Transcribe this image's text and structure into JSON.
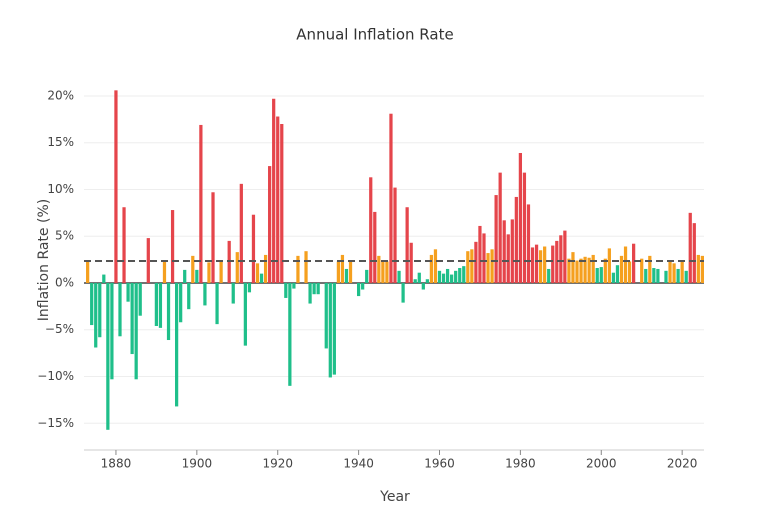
{
  "chart_data": {
    "type": "bar",
    "title": "Annual Inflation Rate",
    "x_label": "Year",
    "y_label": "Inflation Rate (%)",
    "x": [
      1873,
      1874,
      1875,
      1876,
      1877,
      1878,
      1879,
      1880,
      1881,
      1882,
      1883,
      1884,
      1885,
      1886,
      1887,
      1888,
      1889,
      1890,
      1891,
      1892,
      1893,
      1894,
      1895,
      1896,
      1897,
      1898,
      1899,
      1900,
      1901,
      1902,
      1903,
      1904,
      1905,
      1906,
      1907,
      1908,
      1909,
      1910,
      1911,
      1912,
      1913,
      1914,
      1915,
      1916,
      1917,
      1918,
      1919,
      1920,
      1921,
      1922,
      1923,
      1924,
      1925,
      1926,
      1927,
      1928,
      1929,
      1930,
      1931,
      1932,
      1933,
      1934,
      1935,
      1936,
      1937,
      1938,
      1939,
      1940,
      1941,
      1942,
      1943,
      1944,
      1945,
      1946,
      1947,
      1948,
      1949,
      1950,
      1951,
      1952,
      1953,
      1954,
      1955,
      1956,
      1957,
      1958,
      1959,
      1960,
      1961,
      1962,
      1963,
      1964,
      1965,
      1966,
      1967,
      1968,
      1969,
      1970,
      1971,
      1972,
      1973,
      1974,
      1975,
      1976,
      1977,
      1978,
      1979,
      1980,
      1981,
      1982,
      1983,
      1984,
      1985,
      1986,
      1987,
      1988,
      1989,
      1990,
      1991,
      1992,
      1993,
      1994,
      1995,
      1996,
      1997,
      1998,
      1999,
      2000,
      2001,
      2002,
      2003,
      2004,
      2005,
      2006,
      2007,
      2008,
      2009,
      2010,
      2011,
      2012,
      2013,
      2014,
      2015,
      2016,
      2017,
      2018,
      2019,
      2020,
      2021,
      2022,
      2023,
      2024,
      2025
    ],
    "values": [
      2.3,
      -4.5,
      -6.9,
      -5.8,
      0.9,
      -15.7,
      -10.3,
      20.6,
      -5.7,
      8.1,
      -2.0,
      -7.6,
      -10.3,
      -3.5,
      0,
      4.8,
      0,
      -4.6,
      -4.8,
      2.3,
      -6.1,
      7.8,
      -13.2,
      -4.2,
      1.4,
      -2.8,
      2.9,
      1.4,
      16.9,
      -2.4,
      2.2,
      9.7,
      -4.4,
      2.3,
      0,
      4.5,
      -2.2,
      3.3,
      10.6,
      -6.7,
      -1.0,
      7.3,
      2.1,
      1.0,
      3.0,
      12.5,
      19.7,
      17.8,
      17.0,
      -1.6,
      -11.0,
      -0.6,
      2.9,
      0,
      3.4,
      -2.2,
      -1.2,
      -1.2,
      0,
      -7.0,
      -10.1,
      -9.8,
      2.3,
      3.0,
      1.5,
      2.3,
      0,
      -1.4,
      -0.7,
      1.4,
      11.3,
      7.6,
      2.9,
      2.3,
      2.3,
      18.1,
      10.2,
      1.3,
      -2.1,
      8.1,
      4.3,
      0.4,
      1.1,
      -0.7,
      0.4,
      3.0,
      3.6,
      1.3,
      1.0,
      1.5,
      0.9,
      1.3,
      1.6,
      1.8,
      3.4,
      3.6,
      4.4,
      6.1,
      5.3,
      3.2,
      3.6,
      9.4,
      11.8,
      6.7,
      5.2,
      6.8,
      9.2,
      13.9,
      11.8,
      8.4,
      3.8,
      4.1,
      3.5,
      3.9,
      1.5,
      4.0,
      4.5,
      5.1,
      5.6,
      2.6,
      3.3,
      2.4,
      2.6,
      2.8,
      2.7,
      3.0,
      1.6,
      1.7,
      2.6,
      3.7,
      1.1,
      1.9,
      2.9,
      3.9,
      2.3,
      4.2,
      0,
      2.6,
      1.5,
      2.9,
      1.6,
      1.5,
      0,
      1.3,
      2.4,
      2.1,
      1.5,
      2.4,
      1.3,
      7.5,
      6.4,
      3.0,
      2.9
    ],
    "colors": [
      "#f5a01f",
      "#1fbf8a",
      "#1fbf8a",
      "#1fbf8a",
      "#1fbf8a",
      "#1fbf8a",
      "#1fbf8a",
      "#e5454b",
      "#1fbf8a",
      "#e5454b",
      "#1fbf8a",
      "#1fbf8a",
      "#1fbf8a",
      "#1fbf8a",
      "#1fbf8a",
      "#e5454b",
      "#1fbf8a",
      "#1fbf8a",
      "#1fbf8a",
      "#f5a01f",
      "#1fbf8a",
      "#e5454b",
      "#1fbf8a",
      "#1fbf8a",
      "#1fbf8a",
      "#1fbf8a",
      "#f5a01f",
      "#1fbf8a",
      "#e5454b",
      "#1fbf8a",
      "#f5a01f",
      "#e5454b",
      "#1fbf8a",
      "#f5a01f",
      "#1fbf8a",
      "#e5454b",
      "#1fbf8a",
      "#f5a01f",
      "#e5454b",
      "#1fbf8a",
      "#1fbf8a",
      "#e5454b",
      "#f5a01f",
      "#1fbf8a",
      "#f5a01f",
      "#e5454b",
      "#e5454b",
      "#e5454b",
      "#e5454b",
      "#1fbf8a",
      "#1fbf8a",
      "#1fbf8a",
      "#f5a01f",
      "#1fbf8a",
      "#f5a01f",
      "#1fbf8a",
      "#1fbf8a",
      "#1fbf8a",
      "#1fbf8a",
      "#1fbf8a",
      "#1fbf8a",
      "#1fbf8a",
      "#f5a01f",
      "#f5a01f",
      "#1fbf8a",
      "#f5a01f",
      "#1fbf8a",
      "#1fbf8a",
      "#1fbf8a",
      "#1fbf8a",
      "#e5454b",
      "#e5454b",
      "#f5a01f",
      "#f5a01f",
      "#f5a01f",
      "#e5454b",
      "#e5454b",
      "#1fbf8a",
      "#1fbf8a",
      "#e5454b",
      "#e5454b",
      "#1fbf8a",
      "#1fbf8a",
      "#1fbf8a",
      "#1fbf8a",
      "#f5a01f",
      "#f5a01f",
      "#1fbf8a",
      "#1fbf8a",
      "#1fbf8a",
      "#1fbf8a",
      "#1fbf8a",
      "#1fbf8a",
      "#1fbf8a",
      "#f5a01f",
      "#f5a01f",
      "#e5454b",
      "#e5454b",
      "#e5454b",
      "#f5a01f",
      "#f5a01f",
      "#e5454b",
      "#e5454b",
      "#e5454b",
      "#e5454b",
      "#e5454b",
      "#e5454b",
      "#e5454b",
      "#e5454b",
      "#e5454b",
      "#e5454b",
      "#e5454b",
      "#f5a01f",
      "#f5a01f",
      "#1fbf8a",
      "#e5454b",
      "#e5454b",
      "#e5454b",
      "#e5454b",
      "#f5a01f",
      "#f5a01f",
      "#f5a01f",
      "#f5a01f",
      "#f5a01f",
      "#f5a01f",
      "#f5a01f",
      "#1fbf8a",
      "#1fbf8a",
      "#f5a01f",
      "#f5a01f",
      "#1fbf8a",
      "#1fbf8a",
      "#f5a01f",
      "#f5a01f",
      "#f5a01f",
      "#e5454b",
      "#1fbf8a",
      "#f5a01f",
      "#1fbf8a",
      "#f5a01f",
      "#1fbf8a",
      "#1fbf8a",
      "#1fbf8a",
      "#1fbf8a",
      "#f5a01f",
      "#f5a01f",
      "#1fbf8a",
      "#f5a01f",
      "#1fbf8a",
      "#e5454b",
      "#e5454b",
      "#f5a01f",
      "#f5a01f"
    ],
    "reference_line": {
      "value": 2.35,
      "color": "#555555",
      "dashed": true
    },
    "xlim": [
      1872.1,
      2025.4
    ],
    "xticks": [
      1880,
      1900,
      1920,
      1940,
      1960,
      1980,
      2000,
      2020
    ],
    "ylim": [
      -17.86,
      20.85
    ],
    "yticks": [
      {
        "value": -15,
        "label": "−15%"
      },
      {
        "value": -10,
        "label": "−10%"
      },
      {
        "value": -5,
        "label": "−5%"
      },
      {
        "value": 0,
        "label": "0%"
      },
      {
        "value": 5,
        "label": "5%"
      },
      {
        "value": 10,
        "label": "10%"
      },
      {
        "value": 15,
        "label": "15%"
      },
      {
        "value": 20,
        "label": "20%"
      }
    ],
    "grid": true
  }
}
